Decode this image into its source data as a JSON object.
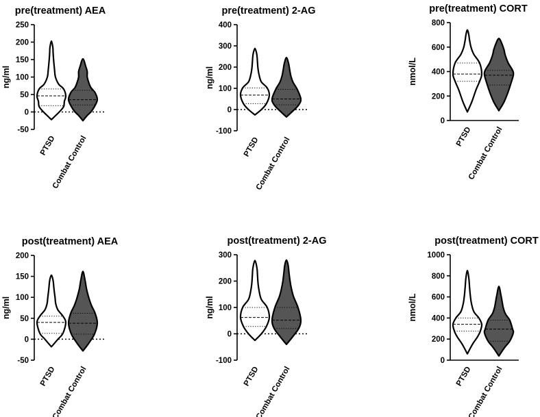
{
  "chart_data": [
    {
      "type": "violin",
      "title": "pre(treatment) AEA",
      "ylabel": "ng/ml",
      "xlabel": "",
      "categories": [
        "PTSD",
        "Combat Control"
      ],
      "ylim": [
        -50,
        250
      ],
      "yticks": [
        "-50",
        "0",
        "50",
        "100",
        "150",
        "200",
        "250"
      ],
      "reference_line": 0,
      "series": [
        {
          "category": "PTSD",
          "fill": "#ffffff",
          "y_min": -22,
          "y_max": 203,
          "q1": 18,
          "median": 46,
          "q3": 66,
          "profile": [
            [
              -22,
              0
            ],
            [
              -10,
              0.3
            ],
            [
              0,
              0.55
            ],
            [
              15,
              0.85
            ],
            [
              30,
              0.9
            ],
            [
              46,
              1
            ],
            [
              66,
              0.85
            ],
            [
              80,
              0.5
            ],
            [
              100,
              0.28
            ],
            [
              120,
              0.22
            ],
            [
              150,
              0.15
            ],
            [
              170,
              0.12
            ],
            [
              185,
              0.1
            ],
            [
              203,
              0
            ]
          ]
        },
        {
          "category": "Combat Control",
          "fill": "#555555",
          "y_min": -25,
          "y_max": 152,
          "q1": 20,
          "median": 35,
          "q3": 62,
          "profile": [
            [
              -25,
              0
            ],
            [
              -10,
              0.3
            ],
            [
              0,
              0.55
            ],
            [
              15,
              0.8
            ],
            [
              35,
              1
            ],
            [
              55,
              0.85
            ],
            [
              70,
              0.55
            ],
            [
              85,
              0.4
            ],
            [
              100,
              0.3
            ],
            [
              115,
              0.3
            ],
            [
              130,
              0.2
            ],
            [
              152,
              0
            ]
          ]
        }
      ]
    },
    {
      "type": "violin",
      "title": "pre(treatment) 2-AG",
      "ylabel": "ng/ml",
      "xlabel": "",
      "categories": [
        "PTSD",
        "Combat Control"
      ],
      "ylim": [
        -100,
        400
      ],
      "yticks": [
        "-100",
        "0",
        "100",
        "200",
        "300",
        "400"
      ],
      "reference_line": 0,
      "series": [
        {
          "category": "PTSD",
          "fill": "#ffffff",
          "y_min": -25,
          "y_max": 288,
          "q1": 28,
          "median": 68,
          "q3": 102,
          "profile": [
            [
              -25,
              0
            ],
            [
              0,
              0.45
            ],
            [
              28,
              0.8
            ],
            [
              68,
              1
            ],
            [
              102,
              0.85
            ],
            [
              130,
              0.45
            ],
            [
              160,
              0.3
            ],
            [
              190,
              0.22
            ],
            [
              220,
              0.18
            ],
            [
              250,
              0.15
            ],
            [
              270,
              0.1
            ],
            [
              288,
              0
            ]
          ]
        },
        {
          "category": "Combat Control",
          "fill": "#555555",
          "y_min": -35,
          "y_max": 245,
          "q1": 22,
          "median": 50,
          "q3": 95,
          "profile": [
            [
              -35,
              0
            ],
            [
              -10,
              0.4
            ],
            [
              22,
              0.85
            ],
            [
              50,
              1
            ],
            [
              95,
              0.75
            ],
            [
              130,
              0.45
            ],
            [
              160,
              0.3
            ],
            [
              190,
              0.22
            ],
            [
              220,
              0.14
            ],
            [
              245,
              0
            ]
          ]
        }
      ]
    },
    {
      "type": "violin",
      "title": "pre(treatment) CORT",
      "ylabel": "nmol/L",
      "xlabel": "",
      "categories": [
        "PTSD",
        "Combat Control"
      ],
      "ylim": [
        0,
        800
      ],
      "yticks": [
        "0",
        "200",
        "400",
        "600",
        "800"
      ],
      "reference_line": null,
      "series": [
        {
          "category": "PTSD",
          "fill": "#ffffff",
          "y_min": 70,
          "y_max": 740,
          "q1": 320,
          "median": 380,
          "q3": 470,
          "profile": [
            [
              70,
              0
            ],
            [
              150,
              0.3
            ],
            [
              250,
              0.6
            ],
            [
              320,
              0.85
            ],
            [
              380,
              1
            ],
            [
              470,
              0.85
            ],
            [
              540,
              0.45
            ],
            [
              600,
              0.25
            ],
            [
              660,
              0.15
            ],
            [
              700,
              0.1
            ],
            [
              740,
              0
            ]
          ]
        },
        {
          "category": "Combat Control",
          "fill": "#555555",
          "y_min": 80,
          "y_max": 670,
          "q1": 290,
          "median": 370,
          "q3": 410,
          "profile": [
            [
              80,
              0
            ],
            [
              150,
              0.35
            ],
            [
              220,
              0.6
            ],
            [
              290,
              0.8
            ],
            [
              370,
              1
            ],
            [
              410,
              0.95
            ],
            [
              470,
              0.65
            ],
            [
              530,
              0.45
            ],
            [
              580,
              0.35
            ],
            [
              630,
              0.2
            ],
            [
              670,
              0
            ]
          ]
        }
      ]
    },
    {
      "type": "violin",
      "title": "post(treatment) AEA",
      "ylabel": "ng/ml",
      "xlabel": "",
      "categories": [
        "PTSD",
        "Combat Control"
      ],
      "ylim": [
        -50,
        200
      ],
      "yticks": [
        "-50",
        "0",
        "50",
        "100",
        "150",
        "200"
      ],
      "reference_line": 0,
      "series": [
        {
          "category": "PTSD",
          "fill": "#ffffff",
          "y_min": -18,
          "y_max": 153,
          "q1": 14,
          "median": 40,
          "q3": 55,
          "profile": [
            [
              -18,
              0
            ],
            [
              0,
              0.45
            ],
            [
              14,
              0.8
            ],
            [
              40,
              1
            ],
            [
              55,
              0.8
            ],
            [
              70,
              0.45
            ],
            [
              85,
              0.3
            ],
            [
              100,
              0.25
            ],
            [
              120,
              0.18
            ],
            [
              140,
              0.12
            ],
            [
              153,
              0
            ]
          ]
        },
        {
          "category": "Combat Control",
          "fill": "#555555",
          "y_min": -28,
          "y_max": 162,
          "q1": 12,
          "median": 38,
          "q3": 62,
          "profile": [
            [
              -28,
              0
            ],
            [
              -10,
              0.4
            ],
            [
              12,
              0.8
            ],
            [
              38,
              1
            ],
            [
              62,
              0.85
            ],
            [
              80,
              0.6
            ],
            [
              100,
              0.4
            ],
            [
              120,
              0.25
            ],
            [
              140,
              0.15
            ],
            [
              162,
              0
            ]
          ]
        }
      ]
    },
    {
      "type": "violin",
      "title": "post(treatment) 2-AG",
      "ylabel": "ng/ml",
      "xlabel": "",
      "categories": [
        "PTSD",
        "Combat Control"
      ],
      "ylim": [
        -100,
        300
      ],
      "yticks": [
        "-100",
        "0",
        "100",
        "200",
        "300"
      ],
      "reference_line": 0,
      "series": [
        {
          "category": "PTSD",
          "fill": "#ffffff",
          "y_min": -25,
          "y_max": 278,
          "q1": 28,
          "median": 62,
          "q3": 100,
          "profile": [
            [
              -25,
              0
            ],
            [
              0,
              0.45
            ],
            [
              28,
              0.8
            ],
            [
              62,
              1
            ],
            [
              100,
              0.85
            ],
            [
              130,
              0.45
            ],
            [
              160,
              0.3
            ],
            [
              190,
              0.22
            ],
            [
              220,
              0.18
            ],
            [
              250,
              0.14
            ],
            [
              278,
              0
            ]
          ]
        },
        {
          "category": "Combat Control",
          "fill": "#555555",
          "y_min": -40,
          "y_max": 280,
          "q1": 20,
          "median": 52,
          "q3": 100,
          "profile": [
            [
              -40,
              0
            ],
            [
              -10,
              0.45
            ],
            [
              20,
              0.85
            ],
            [
              52,
              1
            ],
            [
              100,
              0.8
            ],
            [
              140,
              0.5
            ],
            [
              170,
              0.35
            ],
            [
              200,
              0.25
            ],
            [
              230,
              0.18
            ],
            [
              260,
              0.12
            ],
            [
              280,
              0
            ]
          ]
        }
      ]
    },
    {
      "type": "violin",
      "title": "post(treatment) CORT",
      "ylabel": "nmol/L",
      "xlabel": "",
      "categories": [
        "PTSD",
        "Combat Control"
      ],
      "ylim": [
        0,
        1000
      ],
      "yticks": [
        "0",
        "200",
        "400",
        "600",
        "800",
        "1000"
      ],
      "reference_line": null,
      "series": [
        {
          "category": "PTSD",
          "fill": "#ffffff",
          "y_min": 60,
          "y_max": 850,
          "q1": 275,
          "median": 340,
          "q3": 400,
          "profile": [
            [
              60,
              0
            ],
            [
              150,
              0.35
            ],
            [
              220,
              0.7
            ],
            [
              275,
              0.9
            ],
            [
              340,
              1
            ],
            [
              400,
              0.8
            ],
            [
              460,
              0.45
            ],
            [
              540,
              0.28
            ],
            [
              620,
              0.2
            ],
            [
              700,
              0.15
            ],
            [
              780,
              0.1
            ],
            [
              850,
              0
            ]
          ]
        },
        {
          "category": "Combat Control",
          "fill": "#555555",
          "y_min": 40,
          "y_max": 700,
          "q1": 180,
          "median": 295,
          "q3": 380,
          "profile": [
            [
              40,
              0
            ],
            [
              120,
              0.4
            ],
            [
              180,
              0.75
            ],
            [
              260,
              1
            ],
            [
              295,
              0.95
            ],
            [
              380,
              0.75
            ],
            [
              440,
              0.45
            ],
            [
              500,
              0.3
            ],
            [
              560,
              0.22
            ],
            [
              620,
              0.14
            ],
            [
              700,
              0
            ]
          ]
        }
      ]
    }
  ]
}
